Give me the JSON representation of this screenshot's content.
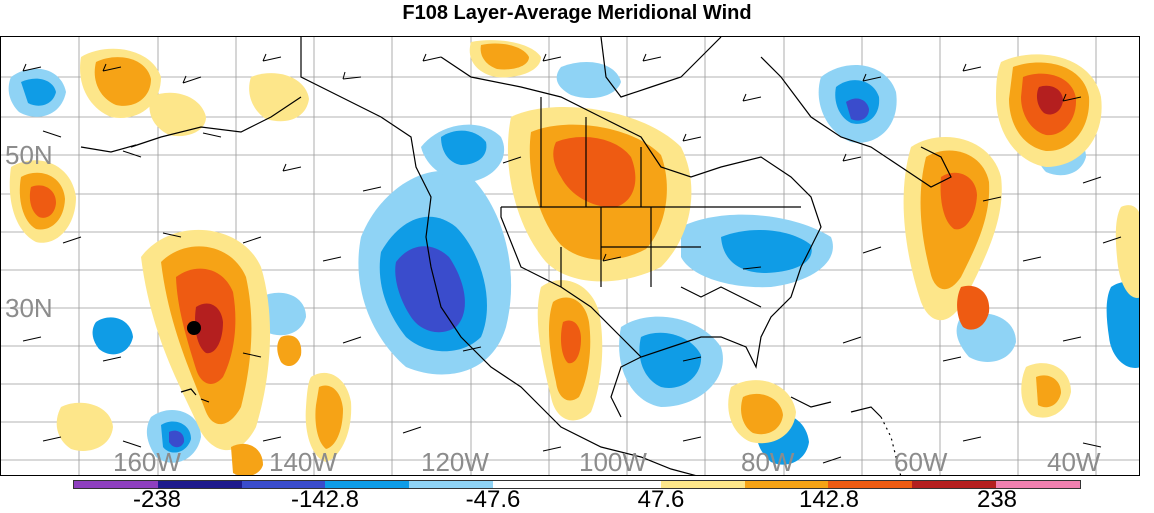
{
  "title": "F108 Layer-Average Meridional Wind",
  "lat_labels": [
    "50N",
    "30N"
  ],
  "lon_labels": [
    "160W",
    "140W",
    "120W",
    "100W",
    "80W",
    "60W",
    "40W"
  ],
  "colorbar": {
    "colors": [
      "#8e3fbf",
      "#1e1a8c",
      "#3a4ccc",
      "#0f9ce6",
      "#8fd3f5",
      "#ffffff",
      "#ffffff",
      "#fde68a",
      "#f6a316",
      "#ee5b12",
      "#b41f1f",
      "#f080b0"
    ],
    "labels": [
      "-238",
      "-142.8",
      "-47.6",
      "47.6",
      "142.8",
      "238"
    ]
  },
  "legend_icon": "wind-barb-icon",
  "marker_icon": "location-dot-icon"
}
